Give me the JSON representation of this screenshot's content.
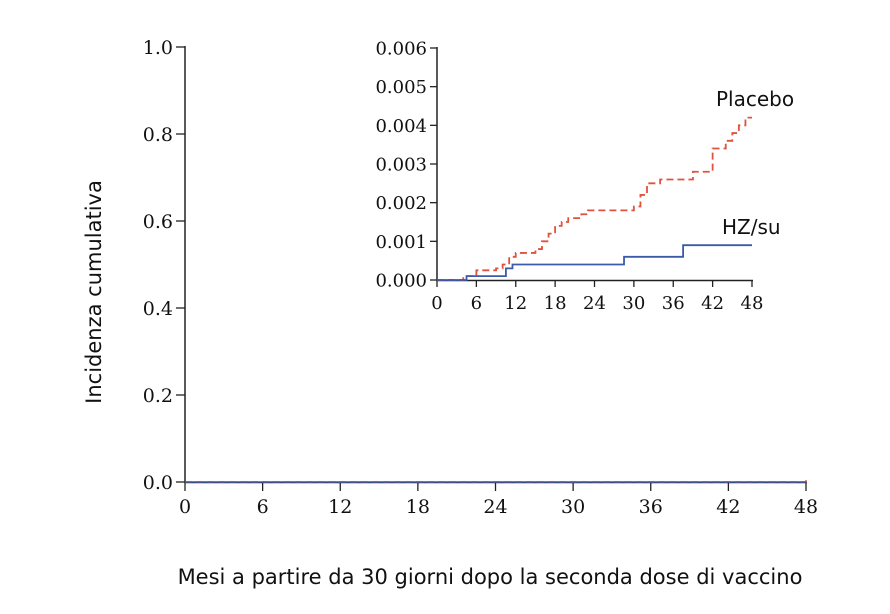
{
  "chart_data": [
    {
      "type": "line",
      "step": true,
      "title": "",
      "xlabel": "Mesi a partire da 30 giorni dopo la seconda dose di vaccino",
      "ylabel": "Incidenza cumulativa",
      "xlim": [
        0,
        48
      ],
      "ylim": [
        0,
        1.0
      ],
      "x_ticks": [
        0,
        6,
        12,
        18,
        24,
        30,
        36,
        42,
        48
      ],
      "y_ticks": [
        "0.0",
        "0.2",
        "0.4",
        "0.6",
        "0.8",
        "1.0"
      ],
      "grid": false,
      "series": [
        {
          "name": "Placebo",
          "color": "#e0523e",
          "dash": "dashed",
          "points": [
            [
              0,
              0
            ],
            [
              48,
              0.0042
            ]
          ]
        },
        {
          "name": "HZ/su",
          "color": "#3b5ba8",
          "dash": "solid",
          "points": [
            [
              0,
              0
            ],
            [
              48,
              0.0009
            ]
          ]
        }
      ]
    },
    {
      "type": "line",
      "step": true,
      "title": "",
      "xlabel": "",
      "ylabel": "",
      "xlim": [
        0,
        48
      ],
      "ylim": [
        0,
        0.006
      ],
      "x_ticks": [
        0,
        6,
        12,
        18,
        24,
        30,
        36,
        42,
        48
      ],
      "y_ticks": [
        "0.000",
        "0.001",
        "0.002",
        "0.003",
        "0.004",
        "0.005",
        "0.006"
      ],
      "grid": false,
      "series": [
        {
          "name": "Placebo",
          "color": "#e0523e",
          "dash": "dashed",
          "points": [
            [
              0,
              0
            ],
            [
              4,
              0.0001
            ],
            [
              6,
              0.00025
            ],
            [
              9,
              0.0003
            ],
            [
              10,
              0.0004
            ],
            [
              11,
              0.0006
            ],
            [
              12,
              0.0007
            ],
            [
              15,
              0.0008
            ],
            [
              16,
              0.001
            ],
            [
              17,
              0.0012
            ],
            [
              18,
              0.0014
            ],
            [
              19,
              0.0015
            ],
            [
              20,
              0.0016
            ],
            [
              22,
              0.0017
            ],
            [
              23,
              0.0018
            ],
            [
              30,
              0.0019
            ],
            [
              31,
              0.0022
            ],
            [
              32,
              0.0025
            ],
            [
              34,
              0.0026
            ],
            [
              39,
              0.0028
            ],
            [
              42,
              0.0034
            ],
            [
              44,
              0.0036
            ],
            [
              45,
              0.0038
            ],
            [
              46,
              0.004
            ],
            [
              47,
              0.0042
            ],
            [
              48,
              0.0042
            ]
          ]
        },
        {
          "name": "HZ/su",
          "color": "#3b5ba8",
          "dash": "solid",
          "points": [
            [
              0,
              0
            ],
            [
              4.5,
              0.0001
            ],
            [
              10.5,
              0.0003
            ],
            [
              11.5,
              0.0004
            ],
            [
              28.5,
              0.0006
            ],
            [
              37.5,
              0.0009
            ],
            [
              48,
              0.0009
            ]
          ]
        }
      ]
    }
  ]
}
